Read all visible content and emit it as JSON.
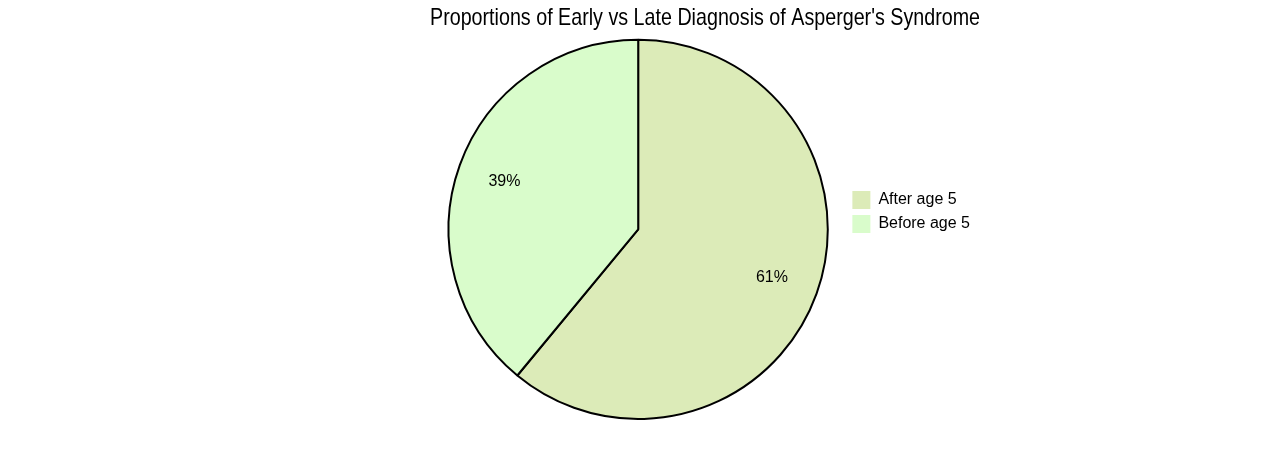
{
  "chart_data": {
    "type": "pie",
    "title": "Proportions of Early vs Late Diagnosis of Asperger's Syndrome",
    "categories": [
      "After age 5",
      "Before age 5"
    ],
    "values": [
      61,
      39
    ],
    "value_labels": [
      "61%",
      "39%"
    ],
    "colors": [
      "#dcebb8",
      "#d9fccb"
    ],
    "data_labels": true,
    "legend": "right"
  }
}
